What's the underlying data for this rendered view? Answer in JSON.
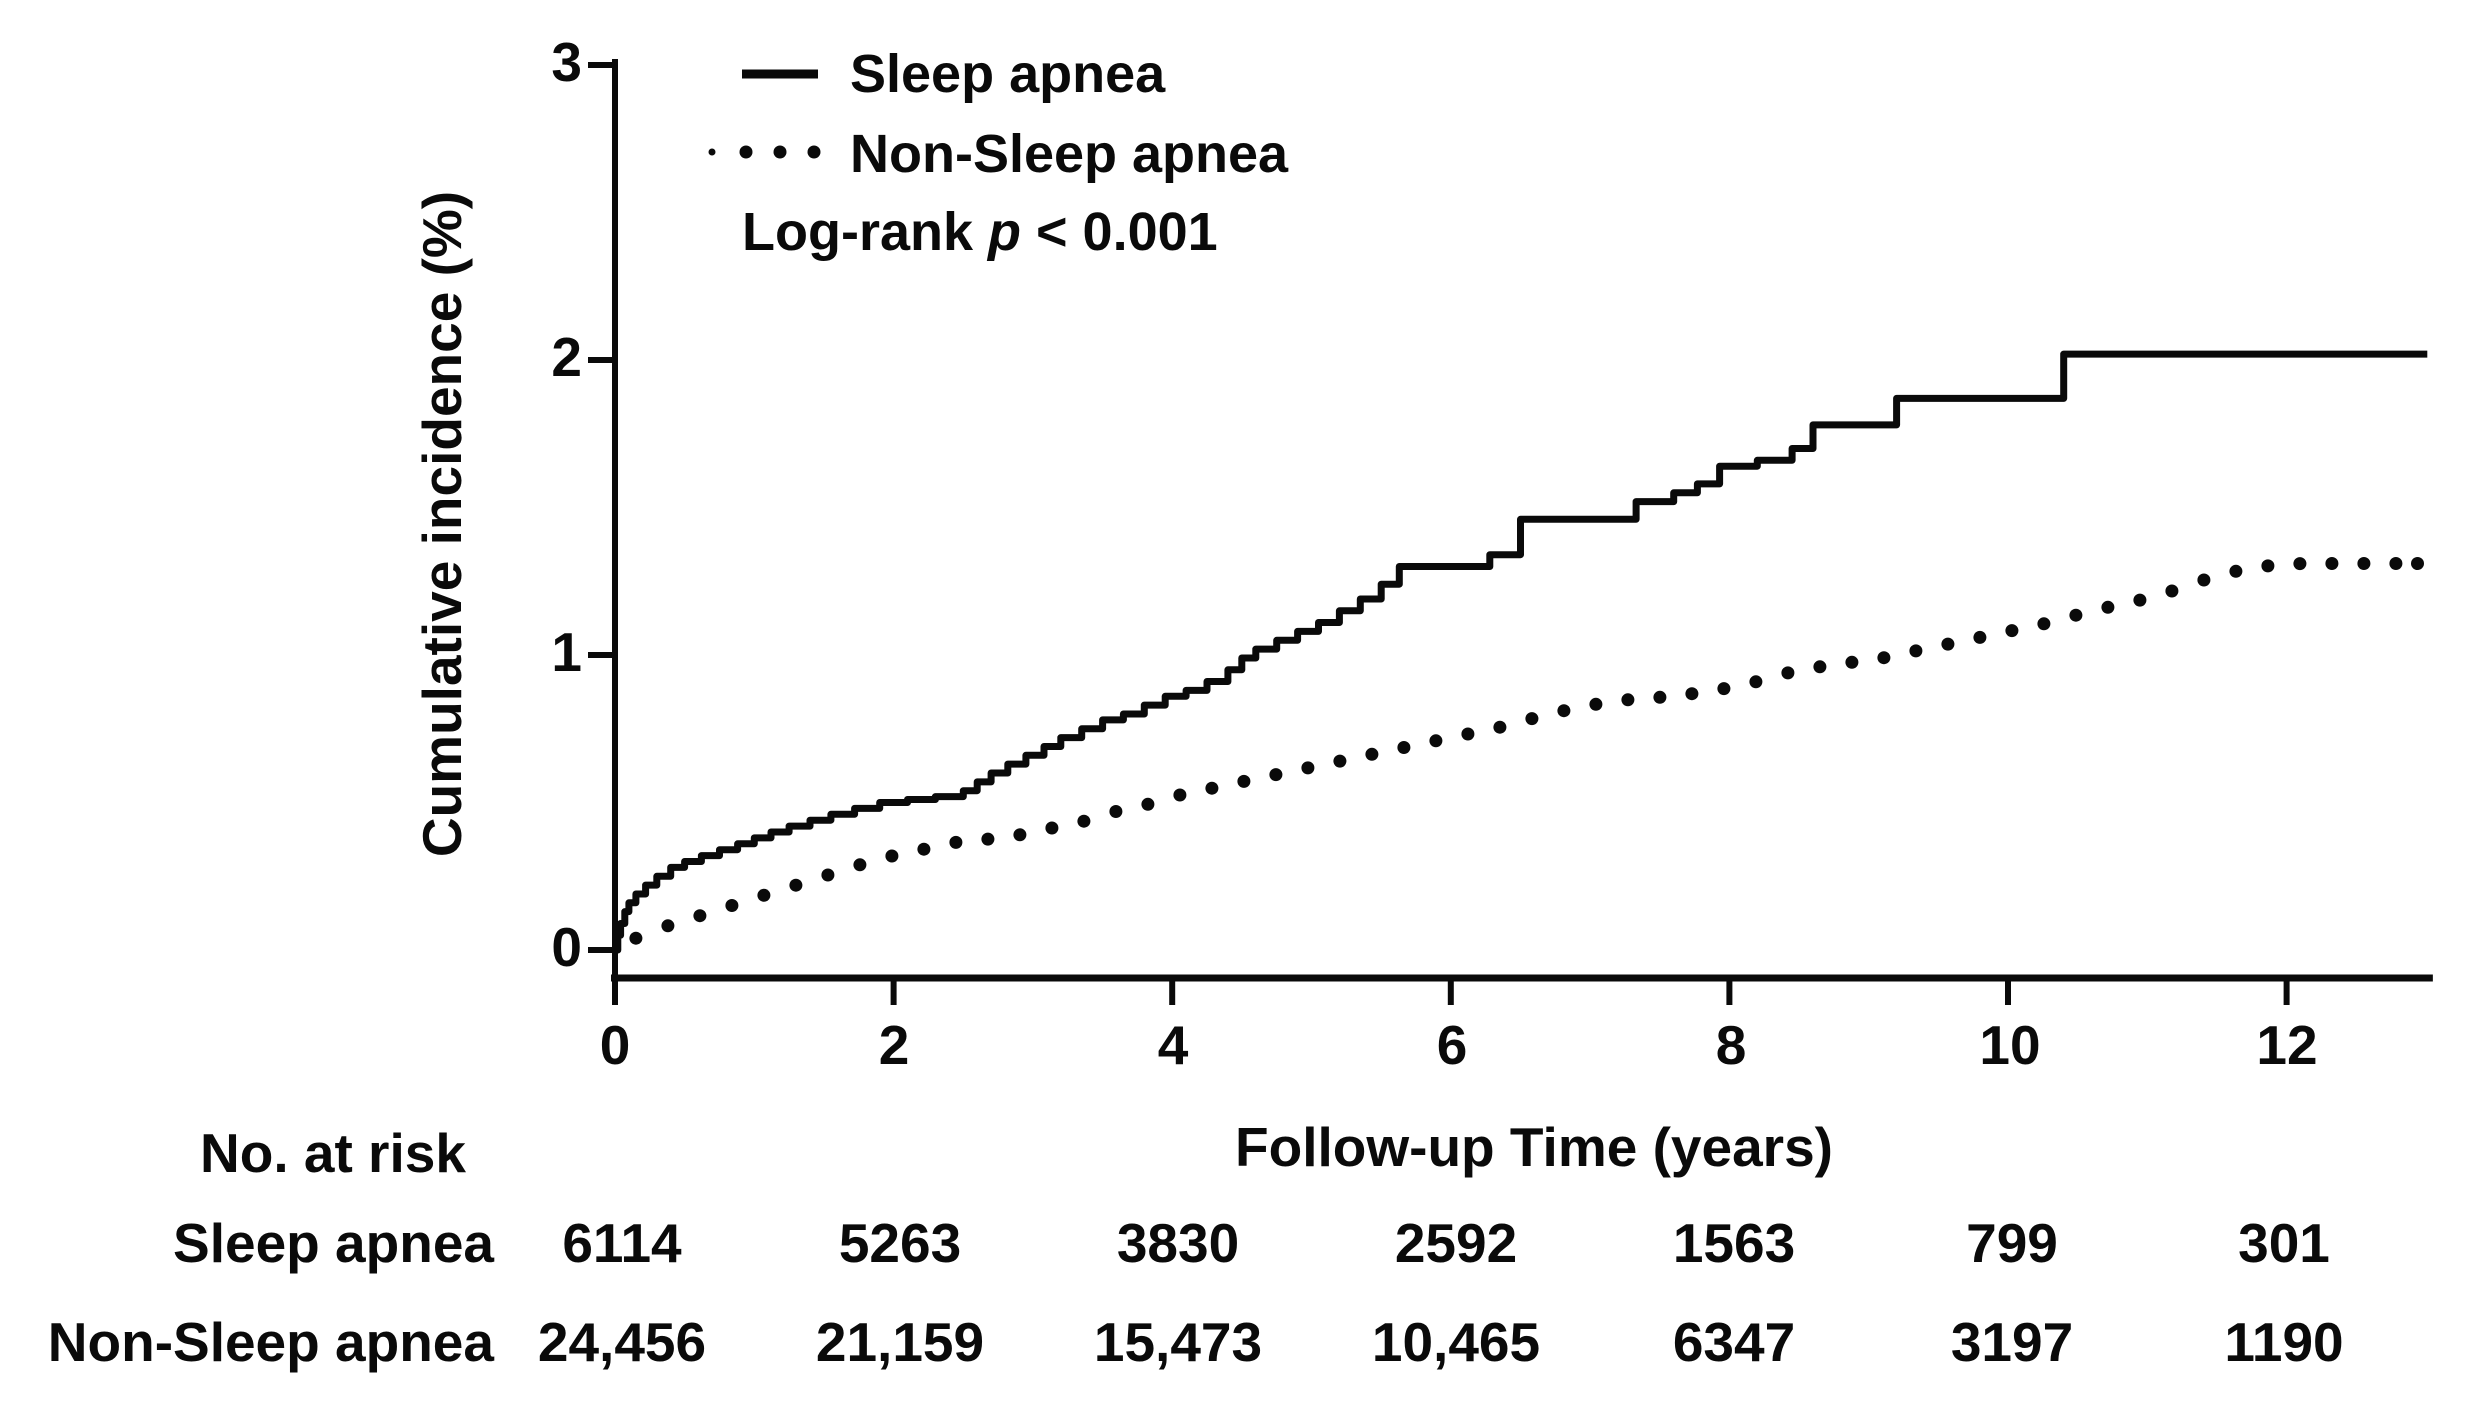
{
  "colors": {
    "ink": "#0a0a0a",
    "background": "#ffffff"
  },
  "chart_data": {
    "type": "line",
    "subtype": "kaplan-meier-cumulative-incidence-step-plot",
    "title": "",
    "xlabel": "Follow-up Time (years)",
    "ylabel": "Cumulative incidence (%)",
    "xlim": [
      0,
      13.05
    ],
    "ylim": [
      0,
      3
    ],
    "xticks": [
      0,
      2,
      4,
      6,
      8,
      10,
      12
    ],
    "yticks": [
      0,
      1,
      2,
      3
    ],
    "grid": false,
    "legend": {
      "position": "top-left-inside",
      "entries": [
        {
          "label": "Sleep apnea",
          "marker": "solid-line"
        },
        {
          "label": "Non-Sleep apnea",
          "marker": "dotted-line"
        }
      ]
    },
    "annotation": {
      "text": "Log-rank p < 0.001",
      "prefix": "Log-rank ",
      "italic_var": "p",
      "suffix": " < 0.001"
    },
    "series": [
      {
        "name": "Sleep apnea",
        "style": "step-solid",
        "points": [
          [
            0,
            0
          ],
          [
            0.02,
            0.05
          ],
          [
            0.04,
            0.09
          ],
          [
            0.07,
            0.13
          ],
          [
            0.1,
            0.16
          ],
          [
            0.15,
            0.19
          ],
          [
            0.22,
            0.22
          ],
          [
            0.3,
            0.25
          ],
          [
            0.4,
            0.28
          ],
          [
            0.5,
            0.3
          ],
          [
            0.62,
            0.32
          ],
          [
            0.75,
            0.34
          ],
          [
            0.88,
            0.36
          ],
          [
            1.0,
            0.38
          ],
          [
            1.12,
            0.4
          ],
          [
            1.25,
            0.42
          ],
          [
            1.4,
            0.44
          ],
          [
            1.55,
            0.46
          ],
          [
            1.72,
            0.48
          ],
          [
            1.9,
            0.5
          ],
          [
            2.1,
            0.51
          ],
          [
            2.3,
            0.52
          ],
          [
            2.5,
            0.54
          ],
          [
            2.6,
            0.57
          ],
          [
            2.7,
            0.6
          ],
          [
            2.82,
            0.63
          ],
          [
            2.95,
            0.66
          ],
          [
            3.08,
            0.69
          ],
          [
            3.2,
            0.72
          ],
          [
            3.35,
            0.75
          ],
          [
            3.5,
            0.78
          ],
          [
            3.65,
            0.8
          ],
          [
            3.8,
            0.83
          ],
          [
            3.95,
            0.86
          ],
          [
            4.1,
            0.88
          ],
          [
            4.25,
            0.91
          ],
          [
            4.4,
            0.95
          ],
          [
            4.5,
            0.99
          ],
          [
            4.6,
            1.02
          ],
          [
            4.75,
            1.05
          ],
          [
            4.9,
            1.08
          ],
          [
            5.05,
            1.11
          ],
          [
            5.2,
            1.15
          ],
          [
            5.35,
            1.19
          ],
          [
            5.5,
            1.24
          ],
          [
            5.63,
            1.3
          ],
          [
            6.28,
            1.34
          ],
          [
            6.5,
            1.46
          ],
          [
            7.33,
            1.52
          ],
          [
            7.6,
            1.55
          ],
          [
            7.77,
            1.58
          ],
          [
            7.93,
            1.64
          ],
          [
            8.2,
            1.66
          ],
          [
            8.45,
            1.7
          ],
          [
            8.6,
            1.78
          ],
          [
            9.2,
            1.87
          ],
          [
            10.4,
            2.02
          ],
          [
            13.01,
            2.02
          ]
        ]
      },
      {
        "name": "Non-Sleep apnea",
        "style": "dotted",
        "points": [
          [
            0.15,
            0.04
          ],
          [
            0.3,
            0.07
          ],
          [
            0.5,
            0.1
          ],
          [
            0.7,
            0.13
          ],
          [
            0.9,
            0.16
          ],
          [
            1.1,
            0.19
          ],
          [
            1.3,
            0.22
          ],
          [
            1.5,
            0.25
          ],
          [
            1.7,
            0.28
          ],
          [
            1.9,
            0.31
          ],
          [
            2.1,
            0.33
          ],
          [
            2.3,
            0.35
          ],
          [
            2.5,
            0.37
          ],
          [
            2.8,
            0.38
          ],
          [
            3.0,
            0.4
          ],
          [
            3.2,
            0.42
          ],
          [
            3.4,
            0.44
          ],
          [
            3.6,
            0.47
          ],
          [
            3.8,
            0.49
          ],
          [
            4.0,
            0.52
          ],
          [
            4.3,
            0.55
          ],
          [
            4.6,
            0.58
          ],
          [
            4.9,
            0.61
          ],
          [
            5.2,
            0.64
          ],
          [
            5.5,
            0.67
          ],
          [
            5.8,
            0.7
          ],
          [
            6.1,
            0.73
          ],
          [
            6.4,
            0.76
          ],
          [
            6.7,
            0.8
          ],
          [
            7.0,
            0.83
          ],
          [
            7.3,
            0.85
          ],
          [
            7.6,
            0.86
          ],
          [
            7.9,
            0.88
          ],
          [
            8.2,
            0.91
          ],
          [
            8.5,
            0.95
          ],
          [
            8.8,
            0.97
          ],
          [
            9.1,
            0.99
          ],
          [
            9.4,
            1.02
          ],
          [
            9.7,
            1.05
          ],
          [
            10.0,
            1.08
          ],
          [
            10.3,
            1.11
          ],
          [
            10.6,
            1.15
          ],
          [
            10.9,
            1.18
          ],
          [
            11.2,
            1.22
          ],
          [
            11.5,
            1.27
          ],
          [
            11.8,
            1.3
          ],
          [
            12.1,
            1.31
          ],
          [
            12.5,
            1.31
          ],
          [
            12.94,
            1.31
          ]
        ]
      }
    ]
  },
  "risk_table": {
    "title": "No. at risk",
    "time_points": [
      0,
      2,
      4,
      6,
      8,
      10,
      12
    ],
    "rows": [
      {
        "label": "Sleep apnea",
        "values": [
          "6114",
          "5263",
          "3830",
          "2592",
          "1563",
          "799",
          "301"
        ]
      },
      {
        "label": "Non-Sleep apnea",
        "values": [
          "24,456",
          "21,159",
          "15,473",
          "10,465",
          "6347",
          "3197",
          "1190"
        ]
      }
    ]
  }
}
